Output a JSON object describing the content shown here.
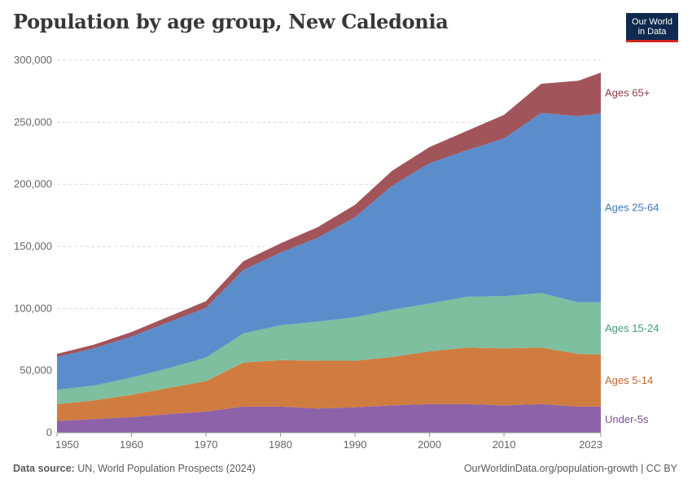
{
  "title": "Population by age group, New Caledonia",
  "logo": {
    "line1": "Our World",
    "line2": "in Data"
  },
  "footer": {
    "source_label": "Data source:",
    "source_text": "UN, World Population Prospects (2024)",
    "url": "OurWorldinData.org/population-growth | CC BY"
  },
  "chart_data": {
    "type": "area",
    "stacked": true,
    "title": "Population by age group, New Caledonia",
    "xlabel": "",
    "ylabel": "",
    "xlim": [
      1950,
      2023
    ],
    "ylim": [
      0,
      300000
    ],
    "x_ticks": [
      1950,
      1960,
      1970,
      1980,
      1990,
      2000,
      2010,
      2023
    ],
    "x_tick_labels": [
      "1950",
      "1960",
      "1970",
      "1980",
      "1990",
      "2000",
      "2010",
      "2023"
    ],
    "y_ticks": [
      0,
      50000,
      100000,
      150000,
      200000,
      250000,
      300000
    ],
    "y_tick_labels": [
      "0",
      "50,000",
      "100,000",
      "150,000",
      "200,000",
      "250,000",
      "300,000"
    ],
    "grid": true,
    "legend_placement": "right-inline",
    "x": [
      1950,
      1955,
      1960,
      1965,
      1970,
      1975,
      1980,
      1985,
      1990,
      1995,
      2000,
      2005,
      2010,
      2015,
      2020,
      2023
    ],
    "series": [
      {
        "name": "Under-5s",
        "color": "#8e62a8",
        "values": [
          9500,
          11000,
          12500,
          15000,
          17000,
          21000,
          21000,
          19500,
          20500,
          22000,
          23000,
          23000,
          22000,
          23000,
          21000,
          21000
        ]
      },
      {
        "name": "Ages 5-14",
        "color": "#d07c40",
        "values": [
          13500,
          15000,
          18000,
          21000,
          24500,
          35500,
          37500,
          38500,
          37500,
          39000,
          42500,
          45500,
          46000,
          45500,
          42500,
          42000
        ]
      },
      {
        "name": "Ages 15-24",
        "color": "#7dbf9f",
        "values": [
          11500,
          12000,
          14000,
          16000,
          19000,
          23500,
          28000,
          31500,
          35000,
          38000,
          38500,
          41000,
          42000,
          44000,
          41500,
          42000
        ]
      },
      {
        "name": "Ages 25-64",
        "color": "#5b8dcb",
        "values": [
          26500,
          30000,
          33000,
          37000,
          40000,
          51000,
          58500,
          67500,
          80500,
          100000,
          113000,
          118000,
          127000,
          145000,
          150000,
          152000
        ]
      },
      {
        "name": "Ages 65+",
        "color": "#a2545b",
        "values": [
          2500,
          3000,
          3500,
          4500,
          5500,
          7000,
          7500,
          8500,
          10000,
          12000,
          13000,
          15500,
          19000,
          23500,
          28500,
          33000
        ]
      }
    ],
    "series_label_colors": [
      "#7a4f98",
      "#c2652a",
      "#3f9e73",
      "#3f77b8",
      "#8c3b45"
    ]
  }
}
